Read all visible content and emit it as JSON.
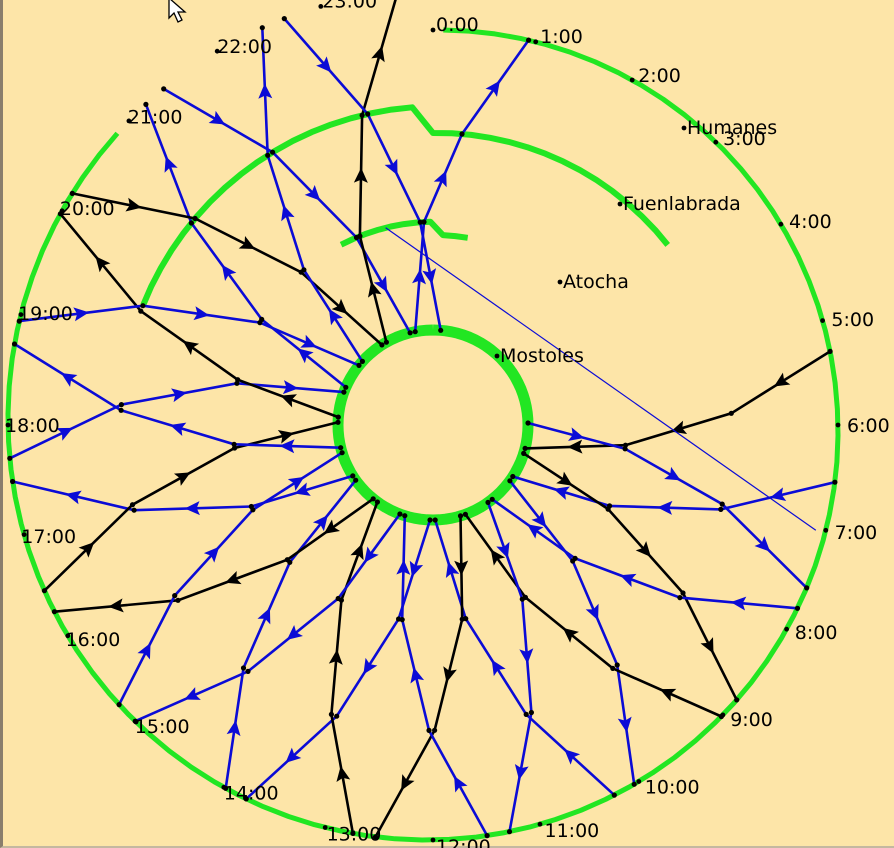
{
  "diagram": {
    "time_labels": [
      "0:00",
      "1:00",
      "2:00",
      "3:00",
      "4:00",
      "5:00",
      "6:00",
      "7:00",
      "8:00",
      "9:00",
      "10:00",
      "11:00",
      "12:00",
      "13:00",
      "14:00",
      "15:00",
      "16:00",
      "17:00",
      "18:00",
      "19:00",
      "20:00",
      "21:00",
      "22:00",
      "23:00"
    ],
    "stations": [
      {
        "name": "Mostoles",
        "ring": 0
      },
      {
        "name": "Atocha",
        "ring": 1
      },
      {
        "name": "Fuenlabrada",
        "ring": 2
      },
      {
        "name": "Humanes",
        "ring": 3
      }
    ],
    "colors": {
      "background": "#fde5a8",
      "station_line": "#22e622",
      "train_blue": "#0b0bd6",
      "train_black": "#000000"
    },
    "icons": [
      "cursor-arrow-icon"
    ]
  }
}
